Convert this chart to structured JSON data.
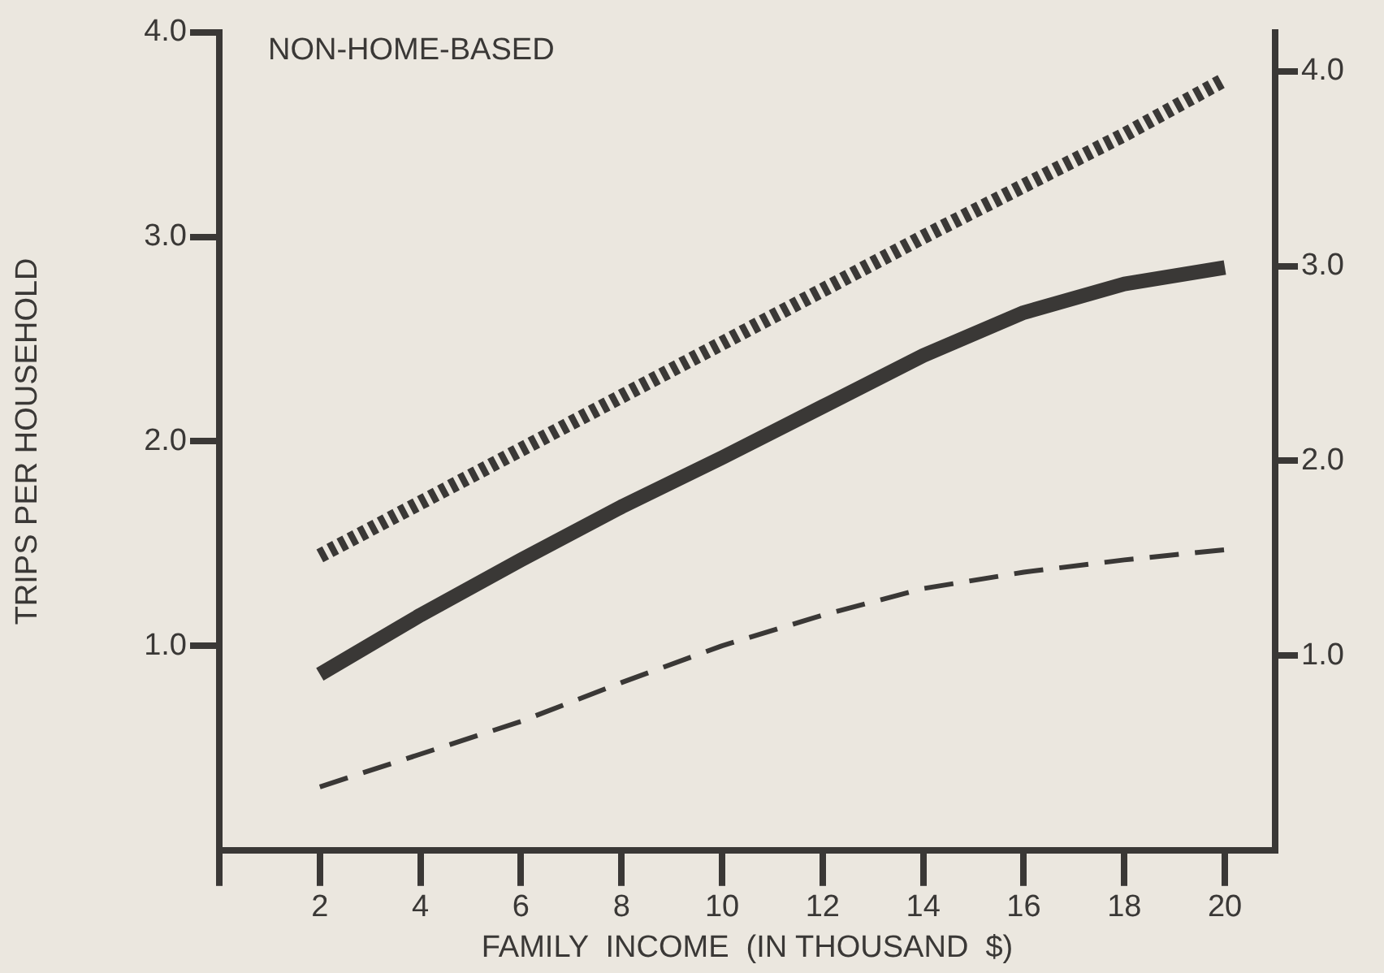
{
  "chart_data": {
    "type": "line",
    "xlabel": "FAMILY  INCOME  (IN THOUSAND  $)",
    "ylabel": "TRIPS PER HOUSEHOLD",
    "annotations": [
      "NON-HOME-BASED"
    ],
    "x": [
      2,
      4,
      6,
      8,
      10,
      12,
      14,
      16,
      18,
      20
    ],
    "series": [
      {
        "color": "#3a3836",
        "line_style": "dotted",
        "values": [
          1.44,
          1.7,
          1.96,
          2.22,
          2.48,
          2.74,
          3.0,
          3.25,
          3.5,
          3.77
        ]
      },
      {
        "color": "#3a3836",
        "line_style": "solid",
        "values": [
          0.86,
          1.15,
          1.42,
          1.68,
          1.92,
          2.17,
          2.42,
          2.63,
          2.77,
          2.85
        ]
      },
      {
        "color": "#3a3836",
        "line_style": "dashed",
        "values": [
          0.31,
          0.47,
          0.63,
          0.82,
          1.0,
          1.15,
          1.28,
          1.36,
          1.42,
          1.47
        ]
      }
    ],
    "xlim": [
      0,
      21
    ],
    "xticks": [
      {
        "value": 0,
        "label": null
      },
      2,
      4,
      6,
      8,
      10,
      12,
      14,
      16,
      18,
      20
    ],
    "ylim": [
      0,
      4
    ],
    "yticks": [
      {
        "value": 1,
        "label": "1.0"
      },
      {
        "value": 2,
        "label": "2.0"
      },
      {
        "value": 3,
        "label": "3.0"
      },
      {
        "value": 4,
        "label": "4.0"
      }
    ],
    "y2lim": [
      0,
      4.2
    ],
    "y2ticks": [
      {
        "value": 1,
        "label": "1.0"
      },
      {
        "value": 2,
        "label": "2.0"
      },
      {
        "value": 3,
        "label": "3.0"
      },
      {
        "value": 4,
        "label": "4.0"
      }
    ],
    "grid": false,
    "legend": false,
    "marker": "none"
  }
}
